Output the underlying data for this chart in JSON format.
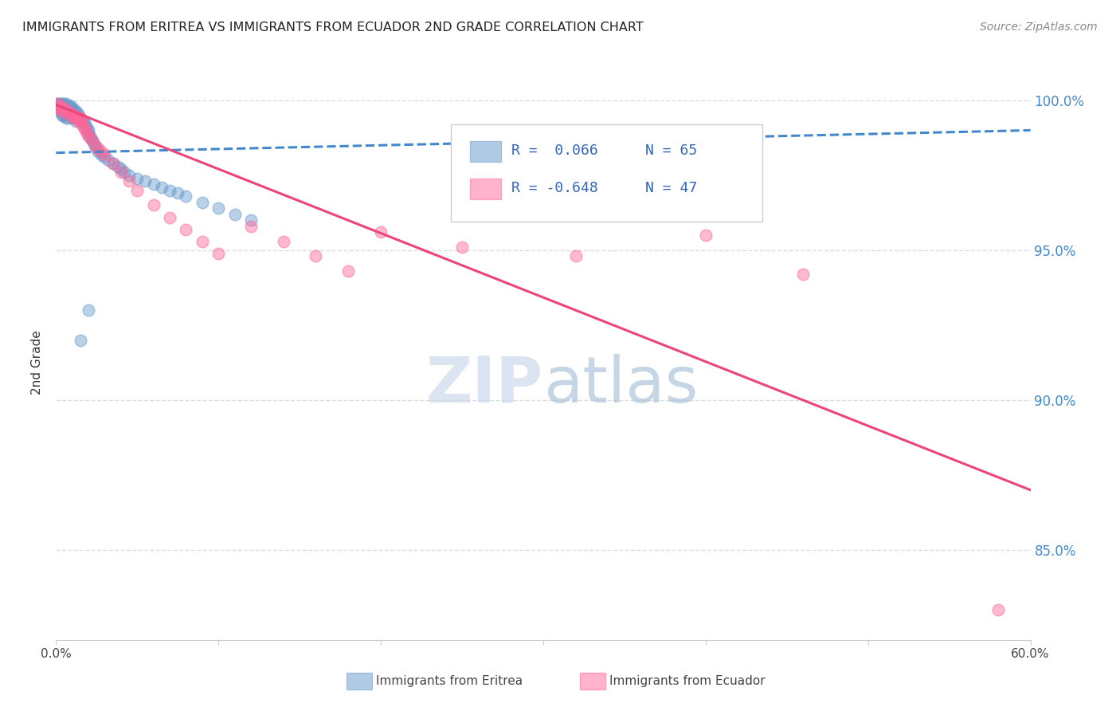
{
  "title": "IMMIGRANTS FROM ERITREA VS IMMIGRANTS FROM ECUADOR 2ND GRADE CORRELATION CHART",
  "source": "Source: ZipAtlas.com",
  "ylabel_label": "2nd Grade",
  "xlim": [
    0.0,
    0.6
  ],
  "ylim": [
    0.82,
    1.005
  ],
  "xtick_labels": [
    "0.0%",
    "",
    "",
    "",
    "",
    "",
    "60.0%"
  ],
  "xtick_vals": [
    0.0,
    0.1,
    0.2,
    0.3,
    0.4,
    0.5,
    0.6
  ],
  "ytick_labels": [
    "85.0%",
    "90.0%",
    "95.0%",
    "100.0%"
  ],
  "ytick_vals": [
    0.85,
    0.9,
    0.95,
    1.0
  ],
  "eritrea_color": "#6699CC",
  "ecuador_color": "#FF6699",
  "eritrea_R": 0.066,
  "eritrea_N": 65,
  "ecuador_R": -0.648,
  "ecuador_N": 47,
  "watermark_zip_color": "#C8D8E8",
  "watermark_atlas_color": "#A0B8CC",
  "eritrea_scatter_x": [
    0.001,
    0.001,
    0.002,
    0.002,
    0.003,
    0.003,
    0.003,
    0.004,
    0.004,
    0.004,
    0.005,
    0.005,
    0.005,
    0.006,
    0.006,
    0.006,
    0.007,
    0.007,
    0.007,
    0.008,
    0.008,
    0.009,
    0.009,
    0.01,
    0.01,
    0.011,
    0.011,
    0.012,
    0.012,
    0.013,
    0.014,
    0.015,
    0.016,
    0.017,
    0.018,
    0.019,
    0.02,
    0.02,
    0.021,
    0.022,
    0.023,
    0.024,
    0.025,
    0.026,
    0.028,
    0.03,
    0.032,
    0.035,
    0.038,
    0.04,
    0.042,
    0.045,
    0.05,
    0.055,
    0.06,
    0.065,
    0.07,
    0.075,
    0.08,
    0.09,
    0.1,
    0.11,
    0.12,
    0.02,
    0.015
  ],
  "eritrea_scatter_y": [
    0.999,
    0.998,
    0.999,
    0.997,
    0.999,
    0.998,
    0.996,
    0.999,
    0.997,
    0.995,
    0.999,
    0.997,
    0.995,
    0.999,
    0.997,
    0.994,
    0.998,
    0.996,
    0.994,
    0.998,
    0.995,
    0.998,
    0.995,
    0.997,
    0.994,
    0.997,
    0.994,
    0.996,
    0.993,
    0.996,
    0.995,
    0.994,
    0.993,
    0.993,
    0.992,
    0.991,
    0.99,
    0.989,
    0.988,
    0.987,
    0.986,
    0.985,
    0.984,
    0.983,
    0.982,
    0.981,
    0.98,
    0.979,
    0.978,
    0.977,
    0.976,
    0.975,
    0.974,
    0.973,
    0.972,
    0.971,
    0.97,
    0.969,
    0.968,
    0.966,
    0.964,
    0.962,
    0.96,
    0.93,
    0.92
  ],
  "ecuador_scatter_x": [
    0.001,
    0.002,
    0.002,
    0.003,
    0.004,
    0.005,
    0.006,
    0.007,
    0.008,
    0.009,
    0.01,
    0.011,
    0.012,
    0.013,
    0.014,
    0.015,
    0.015,
    0.016,
    0.017,
    0.018,
    0.019,
    0.02,
    0.022,
    0.024,
    0.026,
    0.028,
    0.03,
    0.035,
    0.04,
    0.045,
    0.05,
    0.06,
    0.07,
    0.08,
    0.09,
    0.1,
    0.12,
    0.14,
    0.16,
    0.18,
    0.2,
    0.25,
    0.28,
    0.32,
    0.4,
    0.46,
    0.58
  ],
  "ecuador_scatter_y": [
    0.999,
    0.998,
    0.997,
    0.998,
    0.997,
    0.996,
    0.997,
    0.996,
    0.996,
    0.995,
    0.995,
    0.994,
    0.995,
    0.994,
    0.993,
    0.994,
    0.993,
    0.992,
    0.991,
    0.99,
    0.989,
    0.988,
    0.987,
    0.985,
    0.984,
    0.983,
    0.982,
    0.979,
    0.976,
    0.973,
    0.97,
    0.965,
    0.961,
    0.957,
    0.953,
    0.949,
    0.958,
    0.953,
    0.948,
    0.943,
    0.956,
    0.951,
    0.963,
    0.948,
    0.955,
    0.942,
    0.83
  ],
  "eritrea_trend_x": [
    0.0,
    0.6
  ],
  "eritrea_trend_y": [
    0.9825,
    0.99
  ],
  "ecuador_trend_x": [
    0.0,
    0.6
  ],
  "ecuador_trend_y": [
    0.9985,
    0.87
  ],
  "grid_color": "#DDDDDD",
  "background_color": "#FFFFFF"
}
